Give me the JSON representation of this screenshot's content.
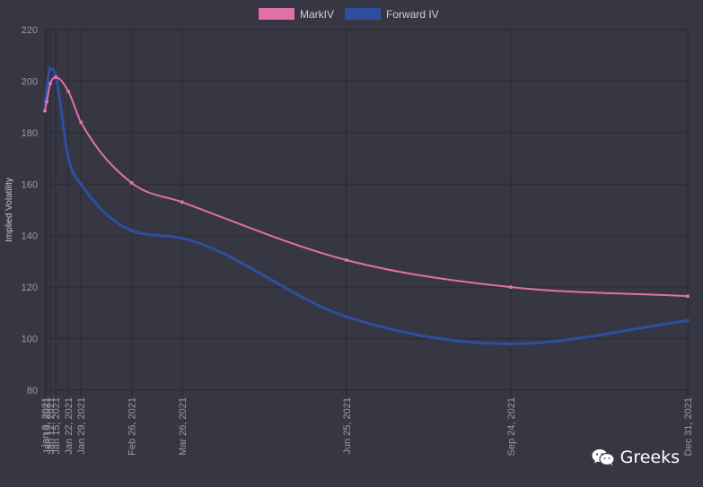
{
  "chart_data": {
    "type": "line",
    "ylabel": "Implied Volatility",
    "xlabel": "",
    "ylim": [
      80,
      220
    ],
    "yticks": [
      80,
      100,
      120,
      140,
      160,
      180,
      200,
      220
    ],
    "x": [
      "2021-01-09",
      "2021-01-10",
      "2021-01-12",
      "2021-01-15",
      "2021-01-22",
      "2021-01-29",
      "2021-02-26",
      "2021-03-26",
      "2021-06-25",
      "2021-09-24",
      "2021-12-31"
    ],
    "tick_labels": [
      "Jan 9, 2021",
      "Jan 10, 2021",
      "Jan 12, 2021",
      "Jan 15, 2021",
      "Jan 22, 2021",
      "Jan 29, 2021",
      "Feb 26, 2021",
      "Mar 26, 2021",
      "Jun 25, 2021",
      "Sep 24, 2021",
      "Dec 31, 2021"
    ],
    "series": [
      {
        "name": "MarkIV",
        "color": "#e070a8",
        "values": [
          188.5,
          192,
          199,
          201.5,
          196,
          184,
          160.5,
          153,
          130.5,
          120,
          116.5
        ]
      },
      {
        "name": "Forward IV",
        "color": "#2e4fa0",
        "values": [
          191,
          197,
          205,
          202,
          170,
          160,
          142,
          139,
          108.5,
          98,
          107
        ]
      }
    ],
    "legend_position": "top-center",
    "grid": true
  },
  "watermark": {
    "icon": "wechat-icon",
    "text": "Greeks"
  }
}
